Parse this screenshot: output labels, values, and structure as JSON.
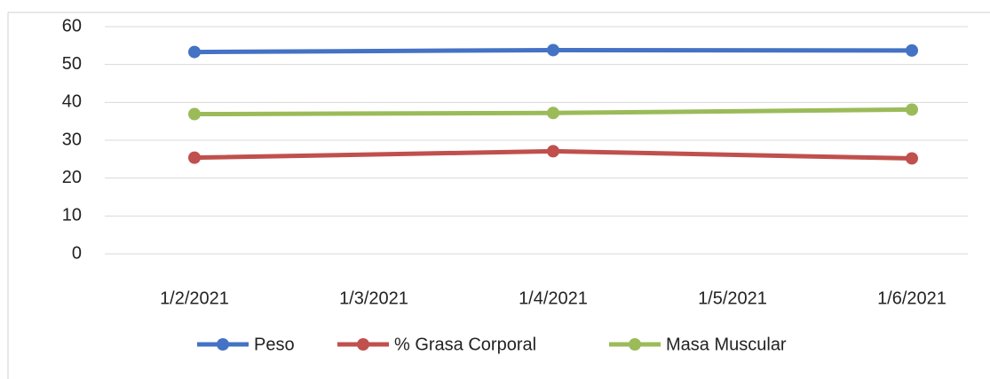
{
  "chart_data": {
    "type": "line",
    "xticks": [
      "1/2/2021",
      "1/3/2021",
      "1/4/2021",
      "1/5/2021",
      "1/6/2021"
    ],
    "x": [
      "1/2/2021",
      "1/4/2021",
      "1/6/2021"
    ],
    "series": [
      {
        "name": "Peso",
        "color": "#4472c4",
        "values": [
          53.3,
          53.8,
          53.7
        ]
      },
      {
        "name": "% Grasa Corporal",
        "color": "#c0504d",
        "values": [
          25.4,
          27.1,
          25.2
        ]
      },
      {
        "name": "Masa Muscular",
        "color": "#9bbb59",
        "values": [
          36.9,
          37.2,
          38.1
        ]
      }
    ],
    "ylim": [
      0,
      60
    ],
    "yticks": [
      0,
      10,
      20,
      30,
      40,
      50,
      60
    ],
    "grid": true,
    "legend": "bottom"
  }
}
